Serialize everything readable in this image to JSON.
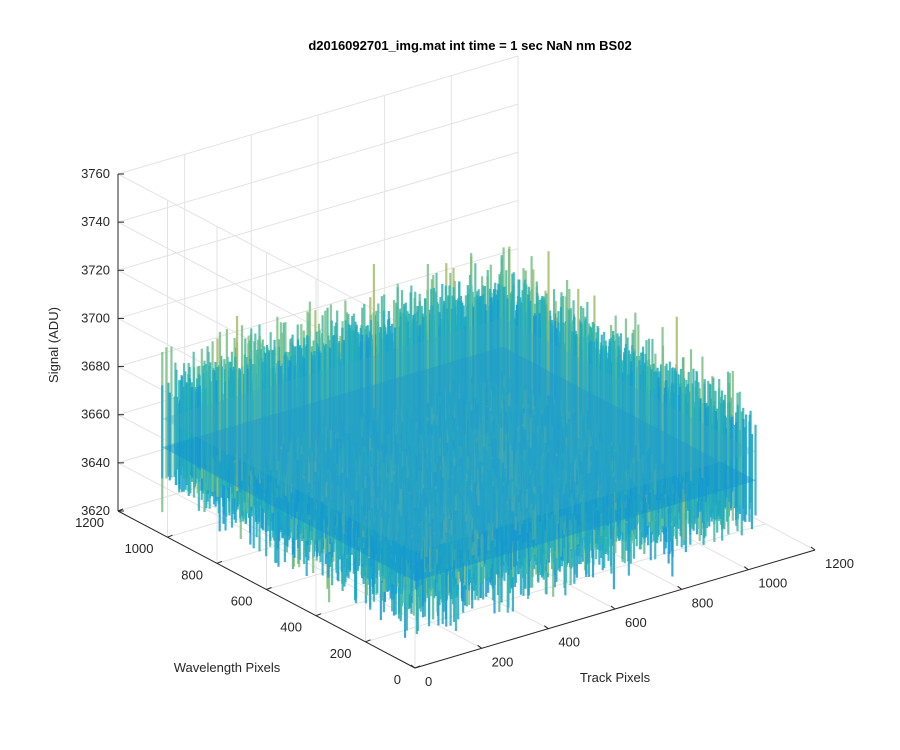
{
  "chart_data": {
    "type": "surface",
    "title": "d2016092701_img.mat int time = 1 sec  NaN nm BS02",
    "xlabel": "Track Pixels",
    "ylabel": "Wavelength Pixels",
    "zlabel": "Signal (ADU)",
    "xlim": [
      0,
      1200
    ],
    "ylim": [
      0,
      1200
    ],
    "zlim": [
      3620,
      3760
    ],
    "x_ticks": [
      "0",
      "200",
      "400",
      "600",
      "800",
      "1000",
      "1200"
    ],
    "y_ticks": [
      "0",
      "200",
      "400",
      "600",
      "800",
      "1000",
      "1200"
    ],
    "z_ticks": [
      "3620",
      "3640",
      "3660",
      "3680",
      "3700",
      "3720",
      "3740",
      "3760"
    ],
    "surface": {
      "x_range": [
        1,
        1024
      ],
      "y_range": [
        1,
        1024
      ],
      "z_mean": 3662,
      "z_typical_range": [
        3640,
        3700
      ],
      "z_extreme_range": [
        3630,
        3740
      ],
      "colormap": "parula"
    },
    "grid": true
  }
}
